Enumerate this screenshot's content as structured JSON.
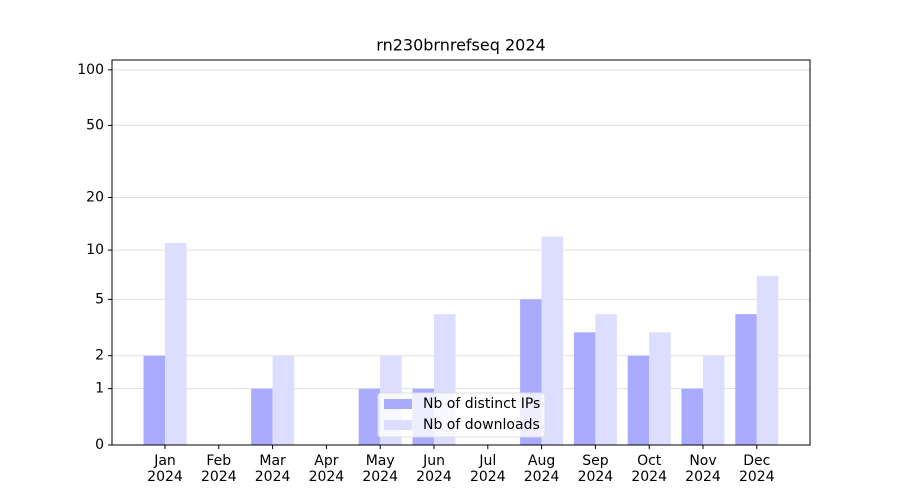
{
  "chart_data": {
    "type": "bar",
    "title": "rn230brnrefseq 2024",
    "categories": [
      "Jan\n2024",
      "Feb\n2024",
      "Mar\n2024",
      "Apr\n2024",
      "May\n2024",
      "Jun\n2024",
      "Jul\n2024",
      "Aug\n2024",
      "Sep\n2024",
      "Oct\n2024",
      "Nov\n2024",
      "Dec\n2024"
    ],
    "series": [
      {
        "name": "Nb of distinct IPs",
        "color": "#aaaaff",
        "values": [
          2,
          0,
          1,
          0,
          1,
          1,
          0,
          5,
          3,
          2,
          1,
          4
        ]
      },
      {
        "name": "Nb of downloads",
        "color": "#ddddff",
        "values": [
          11,
          0,
          2,
          0,
          2,
          4,
          0,
          12,
          4,
          3,
          2,
          7
        ]
      }
    ],
    "yscale": "log1p",
    "ylim": [
      0,
      113
    ],
    "yticks": [
      0,
      1,
      2,
      5,
      10,
      20,
      50,
      100
    ],
    "grid": true,
    "legend": "lower center"
  }
}
